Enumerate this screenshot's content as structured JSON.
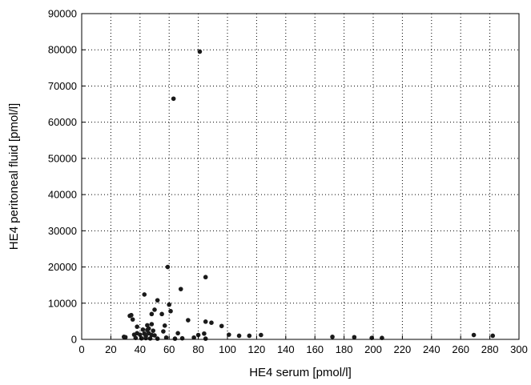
{
  "chart_data": {
    "type": "scatter",
    "title": "",
    "xlabel": "HE4 serum [pmol/l]",
    "ylabel": "HE4 peritoneal fluid [pmol/l]",
    "xlim": [
      0,
      300
    ],
    "ylim": [
      0,
      90000
    ],
    "xticks": [
      0,
      20,
      40,
      60,
      80,
      100,
      120,
      140,
      160,
      180,
      200,
      220,
      240,
      260,
      280,
      300
    ],
    "yticks": [
      0,
      10000,
      20000,
      30000,
      40000,
      50000,
      60000,
      70000,
      80000,
      90000
    ],
    "grid": "dotted",
    "legend": "none",
    "marker_color": "#1a1a1a",
    "points": [
      [
        81,
        79500
      ],
      [
        63,
        66500
      ],
      [
        59,
        20000
      ],
      [
        85,
        17200
      ],
      [
        68,
        13900
      ],
      [
        43,
        12400
      ],
      [
        52,
        10800
      ],
      [
        60,
        9600
      ],
      [
        61,
        7800
      ],
      [
        50,
        8200
      ],
      [
        55,
        7000
      ],
      [
        48,
        7000
      ],
      [
        34,
        6700
      ],
      [
        33,
        6500
      ],
      [
        35,
        5500
      ],
      [
        73,
        5300
      ],
      [
        85,
        4900
      ],
      [
        89,
        4600
      ],
      [
        96,
        3700
      ],
      [
        48,
        4200
      ],
      [
        45,
        3900
      ],
      [
        57,
        3800
      ],
      [
        38,
        3500
      ],
      [
        46,
        3000
      ],
      [
        42,
        2700
      ],
      [
        45,
        2600
      ],
      [
        49,
        2400
      ],
      [
        56,
        2200
      ],
      [
        38,
        1700
      ],
      [
        43,
        1600
      ],
      [
        46,
        1700
      ],
      [
        40,
        1300
      ],
      [
        36,
        1300
      ],
      [
        48,
        1200
      ],
      [
        50,
        1100
      ],
      [
        44,
        900
      ],
      [
        66,
        1700
      ],
      [
        80,
        1200
      ],
      [
        84,
        1600
      ],
      [
        101,
        1300
      ],
      [
        108,
        1000
      ],
      [
        115,
        1000
      ],
      [
        123,
        1200
      ],
      [
        29,
        700
      ],
      [
        30,
        600
      ],
      [
        37,
        400
      ],
      [
        41,
        300
      ],
      [
        44,
        350
      ],
      [
        47,
        250
      ],
      [
        52,
        200
      ],
      [
        58,
        500
      ],
      [
        64,
        200
      ],
      [
        69,
        300
      ],
      [
        77,
        500
      ],
      [
        85,
        200
      ],
      [
        172,
        700
      ],
      [
        187,
        600
      ],
      [
        199,
        400
      ],
      [
        206,
        400
      ],
      [
        269,
        1200
      ],
      [
        282,
        1000
      ]
    ]
  }
}
